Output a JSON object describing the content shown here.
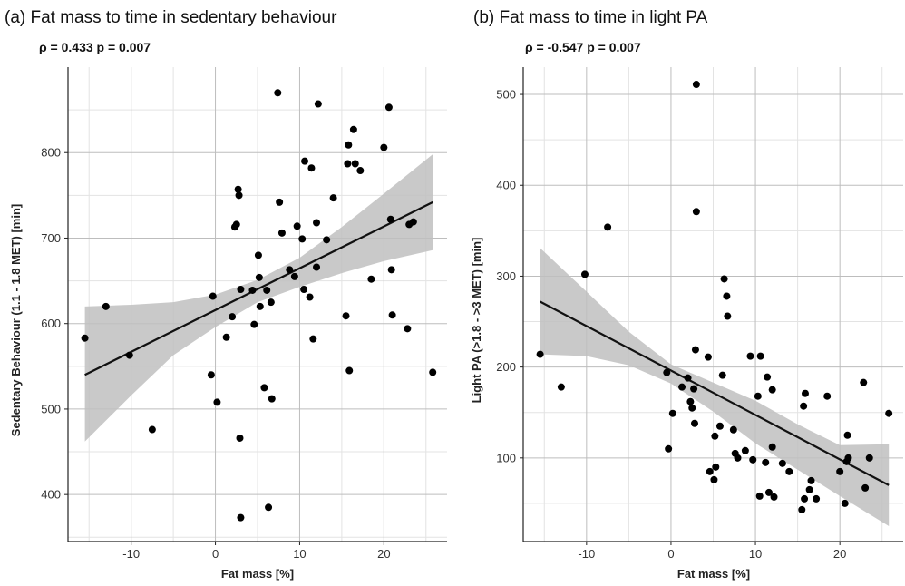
{
  "chart_data": [
    {
      "type": "scatter",
      "title": "(a)  Fat mass to time in sedentary behaviour",
      "subtitle": "ρ = 0.433   p = 0.007",
      "xlabel": "Fat mass [%]",
      "ylabel": "Sedentary Behaviour (1.1 - 1.8 MET) [min]",
      "xlim": [
        -17.5,
        27.5
      ],
      "ylim": [
        345,
        900
      ],
      "xticks": [
        -10,
        0,
        10,
        20
      ],
      "yticks": [
        400,
        500,
        600,
        700,
        800
      ],
      "grid": true,
      "points": [
        [
          -15.5,
          583
        ],
        [
          -13,
          620
        ],
        [
          -10.2,
          563
        ],
        [
          -7.5,
          476
        ],
        [
          -0.5,
          540
        ],
        [
          -0.3,
          632
        ],
        [
          0.2,
          508
        ],
        [
          1.3,
          584
        ],
        [
          2,
          608
        ],
        [
          2.3,
          713
        ],
        [
          2.5,
          716
        ],
        [
          2.7,
          757
        ],
        [
          2.8,
          750
        ],
        [
          2.9,
          466
        ],
        [
          3,
          373
        ],
        [
          3,
          640
        ],
        [
          4.4,
          639
        ],
        [
          4.6,
          599
        ],
        [
          5.1,
          680
        ],
        [
          5.2,
          654
        ],
        [
          5.3,
          620
        ],
        [
          5.8,
          525
        ],
        [
          6.1,
          639
        ],
        [
          6.3,
          385
        ],
        [
          6.6,
          625
        ],
        [
          6.7,
          512
        ],
        [
          7.4,
          870
        ],
        [
          7.6,
          742
        ],
        [
          7.9,
          706
        ],
        [
          8.8,
          663
        ],
        [
          9.4,
          655
        ],
        [
          9.7,
          714
        ],
        [
          10.3,
          699
        ],
        [
          10.5,
          640
        ],
        [
          10.6,
          790
        ],
        [
          11.2,
          631
        ],
        [
          11.4,
          782
        ],
        [
          11.6,
          582
        ],
        [
          12,
          666
        ],
        [
          12,
          718
        ],
        [
          12.2,
          857
        ],
        [
          13.2,
          698
        ],
        [
          14,
          747
        ],
        [
          15.5,
          609
        ],
        [
          15.7,
          787
        ],
        [
          15.8,
          809
        ],
        [
          15.9,
          545
        ],
        [
          16.4,
          827
        ],
        [
          16.6,
          787
        ],
        [
          17.2,
          779
        ],
        [
          18.5,
          652
        ],
        [
          20,
          806
        ],
        [
          20.6,
          853
        ],
        [
          20.8,
          722
        ],
        [
          20.9,
          663
        ],
        [
          21,
          610
        ],
        [
          22.8,
          594
        ],
        [
          23,
          716
        ],
        [
          23.5,
          719
        ],
        [
          25.8,
          543
        ]
      ],
      "regression": {
        "x": [
          -15.5,
          25.8
        ],
        "y": [
          540,
          742
        ]
      },
      "confidence_band": {
        "x": [
          -15.5,
          -10,
          -5,
          0,
          5,
          10,
          15,
          20,
          25.8
        ],
        "lower": [
          462,
          516,
          563,
          596,
          625,
          643,
          659,
          673,
          686
        ],
        "upper": [
          620,
          622,
          625,
          634,
          651,
          677,
          713,
          752,
          798
        ]
      }
    },
    {
      "type": "scatter",
      "title": "(b)  Fat mass to time in light PA",
      "subtitle": "ρ = -0.547   p = 0.007",
      "xlabel": "Fat mass [%]",
      "ylabel": "Light PA (>1.8 - >3 MET) [min]",
      "xlim": [
        -17.5,
        27.5
      ],
      "ylim": [
        8,
        530
      ],
      "xticks": [
        -10,
        0,
        10,
        20
      ],
      "yticks": [
        100,
        200,
        300,
        400,
        500
      ],
      "grid": true,
      "points": [
        [
          -15.5,
          214
        ],
        [
          -13,
          178
        ],
        [
          -10.2,
          302
        ],
        [
          -7.5,
          354
        ],
        [
          -0.5,
          194
        ],
        [
          -0.3,
          110
        ],
        [
          0.2,
          149
        ],
        [
          1.3,
          178
        ],
        [
          2,
          188
        ],
        [
          2.3,
          162
        ],
        [
          2.5,
          155
        ],
        [
          2.7,
          176
        ],
        [
          2.8,
          138
        ],
        [
          2.9,
          219
        ],
        [
          3,
          371
        ],
        [
          3,
          511
        ],
        [
          4.4,
          211
        ],
        [
          4.6,
          85
        ],
        [
          5.1,
          76
        ],
        [
          5.2,
          124
        ],
        [
          5.3,
          90
        ],
        [
          5.8,
          135
        ],
        [
          6.1,
          191
        ],
        [
          6.3,
          297
        ],
        [
          6.6,
          278
        ],
        [
          6.7,
          256
        ],
        [
          7.4,
          131
        ],
        [
          7.6,
          105
        ],
        [
          7.9,
          100
        ],
        [
          8.8,
          108
        ],
        [
          9.4,
          212
        ],
        [
          9.7,
          98
        ],
        [
          10.3,
          168
        ],
        [
          10.5,
          58
        ],
        [
          10.6,
          212
        ],
        [
          11.2,
          95
        ],
        [
          11.4,
          189
        ],
        [
          11.6,
          62
        ],
        [
          12,
          112
        ],
        [
          12,
          175
        ],
        [
          12.2,
          57
        ],
        [
          13.2,
          94
        ],
        [
          14,
          85
        ],
        [
          15.5,
          43
        ],
        [
          15.7,
          157
        ],
        [
          15.8,
          55
        ],
        [
          15.9,
          171
        ],
        [
          16.4,
          65
        ],
        [
          16.6,
          75
        ],
        [
          17.2,
          55
        ],
        [
          18.5,
          168
        ],
        [
          20,
          85
        ],
        [
          20.6,
          50
        ],
        [
          20.8,
          96
        ],
        [
          20.9,
          125
        ],
        [
          21,
          100
        ],
        [
          22.8,
          183
        ],
        [
          23,
          67
        ],
        [
          23.5,
          100
        ],
        [
          25.8,
          149
        ]
      ],
      "regression": {
        "x": [
          -15.5,
          25.8
        ],
        "y": [
          272,
          70
        ]
      },
      "confidence_band": {
        "x": [
          -15.5,
          -10,
          -5,
          0,
          5,
          10,
          15,
          20,
          25.8
        ],
        "lower": [
          214,
          212,
          202,
          182,
          151,
          116,
          87,
          58,
          25
        ],
        "upper": [
          331,
          283,
          239,
          203,
          183,
          163,
          137,
          114,
          115
        ]
      }
    }
  ]
}
